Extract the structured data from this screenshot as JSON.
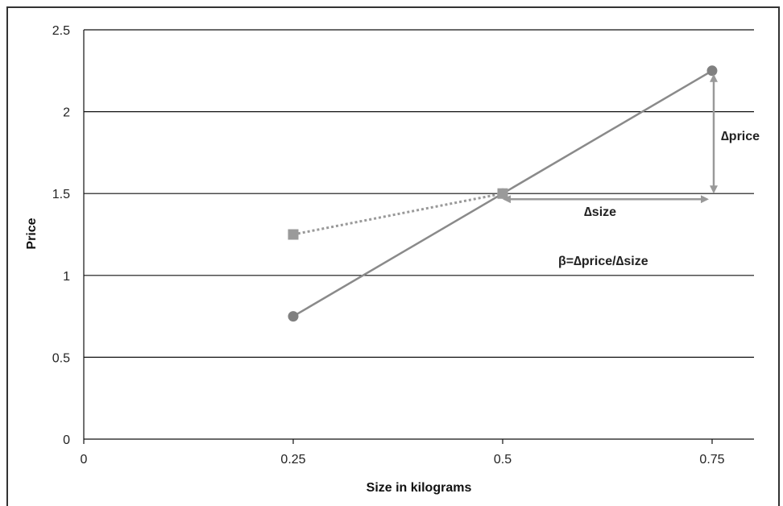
{
  "chart_data": {
    "type": "scatter",
    "xlabel": "Size in kilograms",
    "ylabel": "Price",
    "xlim": [
      0,
      0.8
    ],
    "ylim": [
      0,
      2.5
    ],
    "x_ticks": [
      "0",
      "0.25",
      "0.5",
      "0.75"
    ],
    "y_ticks": [
      "0",
      "0.5",
      "1",
      "1.5",
      "2",
      "2.5"
    ],
    "grid": "horizontal",
    "series": [
      {
        "marker": "circle",
        "line": "solid",
        "color": "#8a8a8a",
        "points": [
          {
            "x": 0.25,
            "y": 0.75
          },
          {
            "x": 0.5,
            "y": 1.5
          },
          {
            "x": 0.75,
            "y": 2.25
          }
        ]
      },
      {
        "marker": "square",
        "line": "dotted",
        "color": "#999999",
        "points": [
          {
            "x": 0.25,
            "y": 1.25
          },
          {
            "x": 0.5,
            "y": 1.5
          }
        ]
      }
    ],
    "annotations": {
      "delta_price": "∆price",
      "delta_size": "∆size",
      "beta_formula": "β=∆price/∆size"
    }
  }
}
